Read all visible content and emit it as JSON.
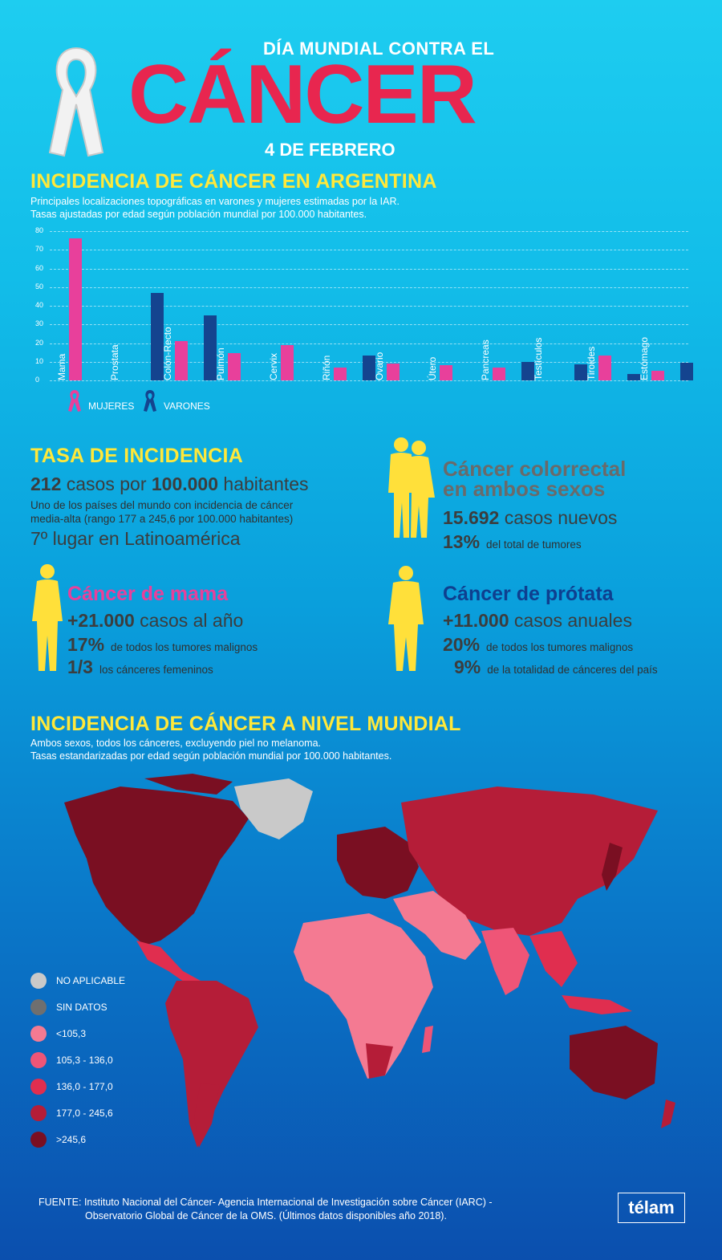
{
  "header": {
    "top_line": "DÍA MUNDIAL CONTRA EL",
    "main": "CÁNCER",
    "date": "4 DE FEBRERO"
  },
  "argentina": {
    "title": "INCIDENCIA DE CÁNCER EN ARGENTINA",
    "sub1": "Principales localizaciones topográficas en varones y mujeres estimadas por la IAR.",
    "sub2": "Tasas ajustadas por edad según población mundial por 100.000 habitantes."
  },
  "chart_data": {
    "type": "bar",
    "ylim": [
      0,
      80
    ],
    "yticks": [
      "0",
      "10",
      "20",
      "30",
      "40",
      "50",
      "60",
      "70",
      "80"
    ],
    "categories": [
      "Mama",
      "Prostata",
      "Colón-Recto",
      "Pulmón",
      "Cervix",
      "Riñón",
      "Ovario",
      "Útero",
      "Pancreas",
      "Testículos",
      "Tiroides",
      "Estómago"
    ],
    "series": [
      {
        "name": "MUJERES",
        "color": "#e8409b",
        "values": [
          76,
          null,
          21,
          14.5,
          19,
          7,
          9,
          8,
          7,
          null,
          13.5,
          5
        ]
      },
      {
        "name": "VARONES",
        "color": "#14448f",
        "values": [
          null,
          47,
          35,
          null,
          null,
          13.5,
          null,
          null,
          10,
          8.5,
          3.5,
          9.5
        ]
      }
    ]
  },
  "legend": {
    "women": "MUJERES",
    "men": "VARONES"
  },
  "tasa": {
    "title": "TASA DE INCIDENCIA",
    "cases_num": "212",
    "cases_mid": "casos por",
    "cases_num2": "100.000",
    "cases_end": "habitantes",
    "desc1": "Uno de los países del mundo con incidencia de cáncer",
    "desc2": "media-alta (rango 177 a 245,6 por 100.000 habitantes)",
    "rank": "7º lugar en Latinoamérica"
  },
  "colorrectal": {
    "title1": "Cáncer colorrectal",
    "title2": "en ambos sexos",
    "num": "15.692",
    "num_text": "casos nuevos",
    "pct": "13%",
    "pct_text": "del total de tumores"
  },
  "mama": {
    "title": "Cáncer de mama",
    "num": "+21.000",
    "num_text": "casos al año",
    "pct": "17%",
    "pct_text": "de todos los tumores malignos",
    "frac": "1/3",
    "frac_text": "los cánceres femeninos"
  },
  "prostata": {
    "title": "Cáncer de prótata",
    "num": "+11.000",
    "num_text": "casos anuales",
    "pct": "20%",
    "pct_text": "de todos los tumores malignos",
    "pct2": "9%",
    "pct2_text": "de la totalidad de cánceres del país"
  },
  "mundial": {
    "title": "INCIDENCIA DE CÁNCER A NIVEL MUNDIAL",
    "sub1": "Ambos sexos, todos los cánceres, excluyendo piel no melanoma.",
    "sub2": "Tasas estandarizadas por edad según población mundial por 100.000 habitantes."
  },
  "map_legend": [
    {
      "label": "NO APLICABLE",
      "color": "#c9c9c9"
    },
    {
      "label": "SIN DATOS",
      "color": "#6f6f6f"
    },
    {
      "label": "<105,3",
      "color": "#f47a92"
    },
    {
      "label": "105,3 - 136,0",
      "color": "#ef5577"
    },
    {
      "label": "136,0 - 177,0",
      "color": "#e02e4f"
    },
    {
      "label": "177,0 - 245,6",
      "color": "#b51d38"
    },
    {
      "label": ">245,6",
      "color": "#7a0f22"
    }
  ],
  "footer": {
    "line1": "FUENTE: Instituto Nacional del Cáncer- Agencia Internacional de Investigación sobre Cáncer (IARC) -",
    "line2": "Observatorio Global de Cáncer de la OMS. (Últimos datos disponibles año 2018).",
    "brand": "télam"
  }
}
